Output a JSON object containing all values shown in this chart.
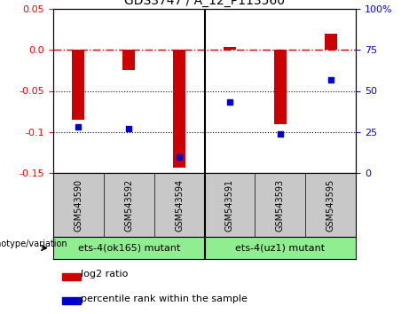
{
  "title": "GDS3747 / A_12_P113560",
  "samples": [
    "GSM543590",
    "GSM543592",
    "GSM543594",
    "GSM543591",
    "GSM543593",
    "GSM543595"
  ],
  "log2_ratio": [
    -0.085,
    -0.025,
    -0.143,
    0.004,
    -0.09,
    0.02
  ],
  "percentile_rank": [
    28,
    27,
    10,
    43,
    24,
    57
  ],
  "ylim_left": [
    -0.15,
    0.05
  ],
  "ylim_right": [
    0,
    100
  ],
  "bar_color": "#CC0000",
  "dot_color": "#0000CC",
  "hline_color": "#CC0000",
  "yticks_left": [
    -0.15,
    -0.1,
    -0.05,
    0.0,
    0.05
  ],
  "yticks_right": [
    0,
    25,
    50,
    75,
    100
  ],
  "dotted_lines": [
    -0.05,
    -0.1
  ],
  "group1_label": "ets-4(ok165) mutant",
  "group2_label": "ets-4(uz1) mutant",
  "group_color": "#90EE90",
  "sample_bg_color": "#C8C8C8",
  "genotype_label": "genotype/variation",
  "legend1": "log2 ratio",
  "legend2": "percentile rank within the sample",
  "fig_width": 4.61,
  "fig_height": 3.54,
  "dpi": 100
}
